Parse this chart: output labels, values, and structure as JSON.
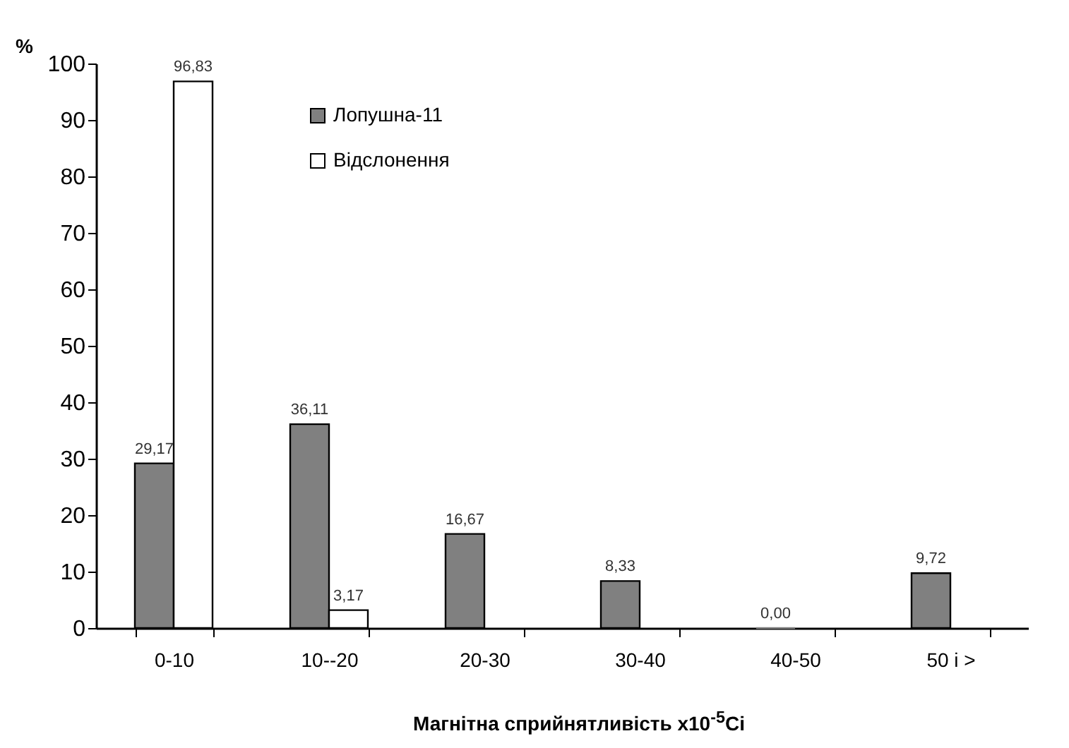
{
  "chart_data": {
    "type": "bar",
    "xlabel": "Магнітна сприйнятливість x10$^{-5}$Ci",
    "ylabel": "%",
    "categories": [
      "0-10",
      "10--20",
      "20-30",
      "30-40",
      "40-50",
      "50 і >"
    ],
    "series": [
      {
        "name": "Лопушна-11",
        "color": "#808080",
        "values": [
          29.17,
          36.11,
          16.67,
          8.33,
          0.0,
          9.72
        ],
        "value_labels": [
          "29,17",
          "36,11",
          "16,67",
          "8,33",
          "0,00",
          "9,72"
        ]
      },
      {
        "name": "Відслонення",
        "color": "#ffffff",
        "values": [
          96.83,
          3.17,
          null,
          null,
          null,
          null
        ],
        "value_labels": [
          "96,83",
          "3,17",
          null,
          null,
          null,
          null
        ]
      }
    ],
    "ylim": [
      0,
      100
    ],
    "yticks": [
      0,
      10,
      20,
      30,
      40,
      50,
      60,
      70,
      80,
      90,
      100
    ],
    "grid": false,
    "legend": "top left"
  }
}
